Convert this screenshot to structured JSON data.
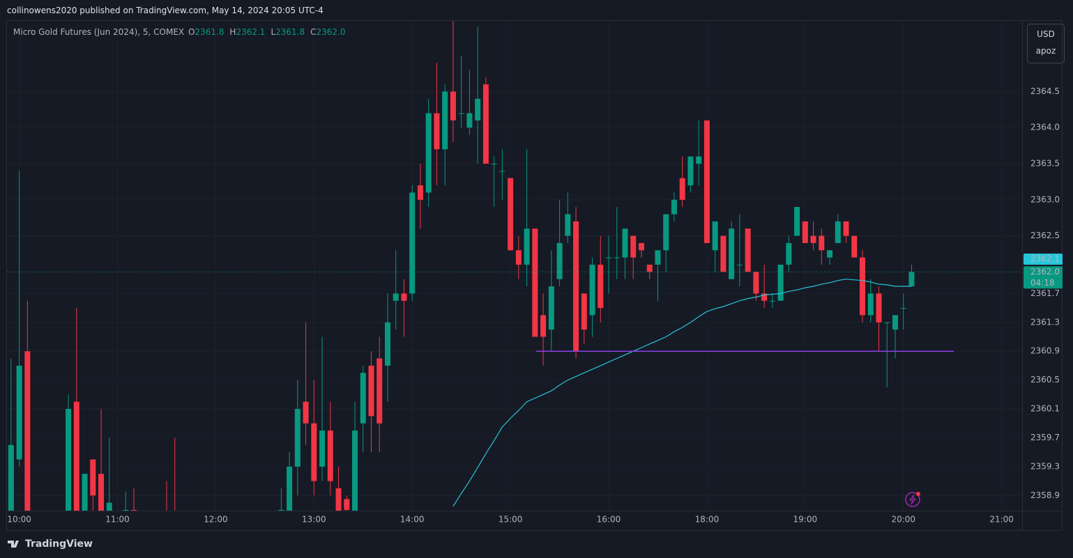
{
  "header": {
    "publisher": "collinowens2020 published on TradingView.com, May 14, 2024 20:05 UTC-4",
    "footer": "TradingView"
  },
  "toolbar": {
    "currency": "USD",
    "account": "apoz"
  },
  "chart_data": {
    "type": "candlestick",
    "title": "Micro Gold Futures (Jun 2024), 5, COMEX",
    "ohlc_legend": [
      {
        "key": "O",
        "value": "2361.8"
      },
      {
        "key": "H",
        "value": "2362.1"
      },
      {
        "key": "L",
        "value": "2361.8"
      },
      {
        "key": "C",
        "value": "2362.0"
      }
    ],
    "up_color": "#089981",
    "down_color": "#f23645",
    "categories": [
      null,
      "10:00",
      null,
      null,
      null,
      null,
      null,
      null,
      null,
      null,
      null,
      null,
      null,
      "11:00",
      null,
      null,
      null,
      null,
      null,
      null,
      null,
      null,
      null,
      null,
      null,
      "12:00",
      null,
      null,
      null,
      null,
      null,
      null,
      null,
      null,
      null,
      null,
      null,
      "13:00",
      null,
      null,
      null,
      null,
      null,
      null,
      null,
      null,
      null,
      null,
      null,
      "14:00",
      null,
      null,
      null,
      null,
      null,
      null,
      null,
      null,
      null,
      null,
      null,
      "15:00",
      null,
      null,
      null,
      null,
      null,
      null,
      null,
      null,
      null,
      null,
      null,
      "16:00",
      null,
      null,
      null,
      null,
      null,
      null,
      null,
      null,
      null,
      null,
      null,
      "18:00",
      null,
      null,
      null,
      null,
      null,
      null,
      null,
      null,
      null,
      null,
      null,
      "19:00",
      null,
      null,
      null,
      null,
      null,
      null,
      null,
      null,
      null,
      null,
      null,
      "20:00",
      null,
      null,
      null,
      null,
      null,
      null,
      null,
      null,
      null,
      null,
      null,
      "21:00",
      null,
      null
    ],
    "open": [
      2358.5,
      2359.4,
      2360.9,
      null,
      null,
      null,
      null,
      2358.5,
      2360.2,
      2358.5,
      2359.4,
      2359.2,
      2358.5,
      null,
      2358.6,
      2358.7,
      null,
      null,
      null,
      2358.6,
      2358.6,
      null,
      null,
      null,
      null,
      null,
      null,
      null,
      null,
      null,
      null,
      null,
      null,
      2358.5,
      2358.5,
      2359.3,
      2360.2,
      2359.9,
      2359.3,
      2359.8,
      2359.0,
      2358.85,
      2358.5,
      2359.9,
      2360.7,
      2360.8,
      2360.7,
      2361.6,
      2361.7,
      2361.7,
      2363.2,
      2363.1,
      2364.2,
      2363.7,
      2364.5,
      2364.2,
      2364.0,
      2364.1,
      2364.6,
      2363.5,
      2363.4,
      2363.3,
      2362.3,
      2362.1,
      2362.6,
      2361.4,
      2361.2,
      2361.9,
      2362.5,
      2362.7,
      2361.7,
      2361.4,
      2362.1,
      2362.2,
      2362.2,
      2362.2,
      2362.5,
      2362.4,
      2362.1,
      2362.1,
      2362.3,
      2362.8,
      2363.3,
      2363.2,
      2363.5,
      2364.1,
      2362.3,
      2362.5,
      2361.9,
      2362.1,
      2362.6,
      2362.0,
      2361.7,
      2361.6,
      2361.6,
      2362.1,
      2362.5,
      2362.7,
      2362.5,
      2362.5,
      2362.2,
      2362.4,
      2362.7,
      2362.5,
      2362.2,
      2361.4,
      2361.7,
      2361.3,
      2361.2,
      2361.5,
      2361.8,
      null,
      null,
      null,
      null,
      null,
      null,
      null,
      null,
      null,
      null,
      null,
      null,
      null
    ],
    "high": [
      2360.8,
      2363.4,
      2361.6,
      null,
      null,
      null,
      null,
      2360.3,
      2361.5,
      2359.2,
      2359.4,
      2360.1,
      2359.7,
      null,
      2358.95,
      2359.0,
      null,
      null,
      null,
      2359.1,
      2359.7,
      null,
      null,
      null,
      null,
      null,
      null,
      null,
      null,
      null,
      null,
      null,
      null,
      2359.0,
      2359.5,
      2360.5,
      2361.3,
      2360.5,
      2361.1,
      2360.2,
      2359.3,
      2358.9,
      2360.2,
      2360.7,
      2360.9,
      2361.1,
      2361.7,
      2362.3,
      2361.9,
      2363.2,
      2363.5,
      2364.4,
      2364.9,
      2364.6,
      2365.5,
      2365.0,
      2364.8,
      2365.4,
      2364.7,
      2363.6,
      2363.7,
      2363.3,
      2362.5,
      2363.7,
      2362.6,
      2361.7,
      2362.3,
      2363.0,
      2363.1,
      2362.9,
      2361.7,
      2362.2,
      2362.5,
      2362.5,
      2362.9,
      2362.6,
      2362.5,
      2362.4,
      2362.1,
      2362.3,
      2362.8,
      2363.1,
      2363.6,
      2363.6,
      2364.1,
      2364.1,
      2362.7,
      2362.5,
      2362.7,
      2362.8,
      2362.6,
      2362.0,
      2362.1,
      2361.7,
      2362.1,
      2362.5,
      2362.9,
      2362.7,
      2362.7,
      2362.6,
      2362.3,
      2362.8,
      2362.7,
      2362.5,
      2362.3,
      2361.9,
      2361.8,
      2361.3,
      2361.4,
      2361.7,
      2362.1,
      null,
      null,
      null,
      null,
      null,
      null,
      null,
      null,
      null,
      null,
      null,
      null,
      null
    ],
    "low": [
      2358.3,
      2359.3,
      2358.4,
      null,
      null,
      null,
      null,
      2358.4,
      2358.4,
      2358.4,
      2358.5,
      2358.4,
      2358.4,
      null,
      2358.5,
      2358.4,
      null,
      null,
      null,
      2358.4,
      2358.4,
      null,
      null,
      null,
      null,
      null,
      null,
      null,
      null,
      null,
      null,
      null,
      null,
      2358.4,
      2358.4,
      2358.9,
      2359.6,
      2358.9,
      2359.1,
      2358.9,
      2358.4,
      2358.6,
      2358.4,
      2359.5,
      2359.5,
      2359.5,
      2360.2,
      2361.2,
      2361.1,
      2361.6,
      2362.6,
      2362.9,
      2363.2,
      2363.2,
      2363.8,
      2364.0,
      2363.9,
      2363.5,
      2363.5,
      2362.9,
      2363.0,
      2362.3,
      2361.9,
      2361.8,
      2361.1,
      2360.7,
      2360.9,
      2361.8,
      2362.4,
      2360.8,
      2361.0,
      2361.1,
      2361.3,
      2361.7,
      2361.9,
      2361.9,
      2361.9,
      2362.2,
      2361.9,
      2361.6,
      2362.0,
      2362.7,
      2362.9,
      2363.1,
      2363.2,
      2362.4,
      2362.0,
      2362.0,
      2361.9,
      2361.8,
      2362.0,
      2361.6,
      2361.5,
      2361.5,
      2361.6,
      2362.0,
      2362.5,
      2362.4,
      2362.3,
      2362.1,
      2362.1,
      2362.4,
      2362.4,
      2362.2,
      2361.3,
      2361.3,
      2360.9,
      2360.4,
      2360.8,
      2361.2,
      2361.8,
      null,
      null,
      null,
      null,
      null,
      null,
      null,
      null,
      null,
      null,
      null,
      null,
      null
    ],
    "close": [
      2359.6,
      2360.7,
      2358.5,
      null,
      null,
      null,
      null,
      2360.1,
      2358.5,
      2359.2,
      2358.9,
      2358.5,
      2358.8,
      null,
      2358.7,
      2358.5,
      null,
      null,
      null,
      2358.5,
      2358.5,
      null,
      null,
      null,
      null,
      null,
      null,
      null,
      null,
      null,
      null,
      null,
      null,
      2358.7,
      2359.3,
      2360.1,
      2359.9,
      2359.1,
      2359.8,
      2359.1,
      2358.5,
      2358.7,
      2359.8,
      2360.6,
      2360.0,
      2359.9,
      2361.3,
      2361.7,
      2361.6,
      2363.1,
      2363.0,
      2364.2,
      2363.7,
      2364.5,
      2364.1,
      2364.2,
      2364.2,
      2364.4,
      2363.5,
      2363.5,
      2363.4,
      2362.3,
      2362.1,
      2362.6,
      2361.1,
      2361.1,
      2361.8,
      2362.4,
      2362.8,
      2360.9,
      2361.2,
      2362.1,
      2361.5,
      2362.2,
      2362.2,
      2362.6,
      2362.2,
      2362.3,
      2362.0,
      2362.3,
      2362.8,
      2363.0,
      2363.0,
      2363.6,
      2363.6,
      2362.4,
      2362.7,
      2362.0,
      2362.6,
      2362.1,
      2362.0,
      2361.7,
      2361.6,
      2361.6,
      2362.1,
      2362.4,
      2362.9,
      2362.4,
      2362.4,
      2362.3,
      2362.3,
      2362.7,
      2362.5,
      2362.2,
      2361.4,
      2361.7,
      2361.3,
      2361.3,
      2361.4,
      2361.5,
      2362.0,
      null,
      null,
      null,
      null,
      null,
      null,
      null,
      null,
      null,
      null,
      null,
      null,
      null
    ],
    "ema": {
      "color": "#26c6da",
      "values": [
        null,
        null,
        null,
        null,
        null,
        null,
        null,
        null,
        null,
        null,
        null,
        null,
        null,
        null,
        null,
        null,
        null,
        null,
        null,
        null,
        null,
        null,
        null,
        null,
        null,
        null,
        null,
        null,
        null,
        null,
        null,
        null,
        null,
        null,
        null,
        null,
        null,
        null,
        null,
        null,
        null,
        null,
        null,
        null,
        null,
        null,
        null,
        null,
        null,
        null,
        null,
        null,
        null,
        null,
        2358.75,
        2358.93,
        2359.1,
        2359.29,
        2359.48,
        2359.66,
        2359.85,
        2359.97,
        2360.08,
        2360.2,
        2360.25,
        2360.3,
        2360.35,
        2360.43,
        2360.5,
        2360.55,
        2360.6,
        2360.65,
        2360.7,
        2360.75,
        2360.8,
        2360.85,
        2360.9,
        2360.95,
        2361.0,
        2361.05,
        2361.1,
        2361.17,
        2361.23,
        2361.3,
        2361.38,
        2361.45,
        2361.49,
        2361.52,
        2361.56,
        2361.6,
        2361.63,
        2361.65,
        2361.68,
        2361.69,
        2361.7,
        2361.73,
        2361.75,
        2361.78,
        2361.8,
        2361.83,
        2361.85,
        2361.88,
        2361.9,
        2361.89,
        2361.88,
        2361.86,
        2361.83,
        2361.82,
        2361.8,
        2361.8,
        2361.8,
        null,
        null,
        null,
        null,
        null,
        null,
        null,
        null,
        null,
        null,
        null,
        null,
        null
      ]
    },
    "hline": {
      "value": 2360.9,
      "color": "#8e3fe6"
    },
    "high_label": {
      "value": 2362.1,
      "color": "#26c6da"
    },
    "last_price": {
      "value": 2362,
      "label": "2362.0",
      "countdown": "04:18",
      "color": "#089981"
    },
    "ylim": [
      2358.69,
      2365.48
    ],
    "yticks": [
      2364.5,
      {
        "value": 2364,
        "label": "2364.0"
      },
      2363.5,
      {
        "value": 2363,
        "label": "2363.0"
      },
      2362.5,
      2361.7,
      2361.3,
      2360.9,
      2360.5,
      2360.1,
      2359.7,
      2359.3,
      2358.9
    ],
    "grid": true
  }
}
